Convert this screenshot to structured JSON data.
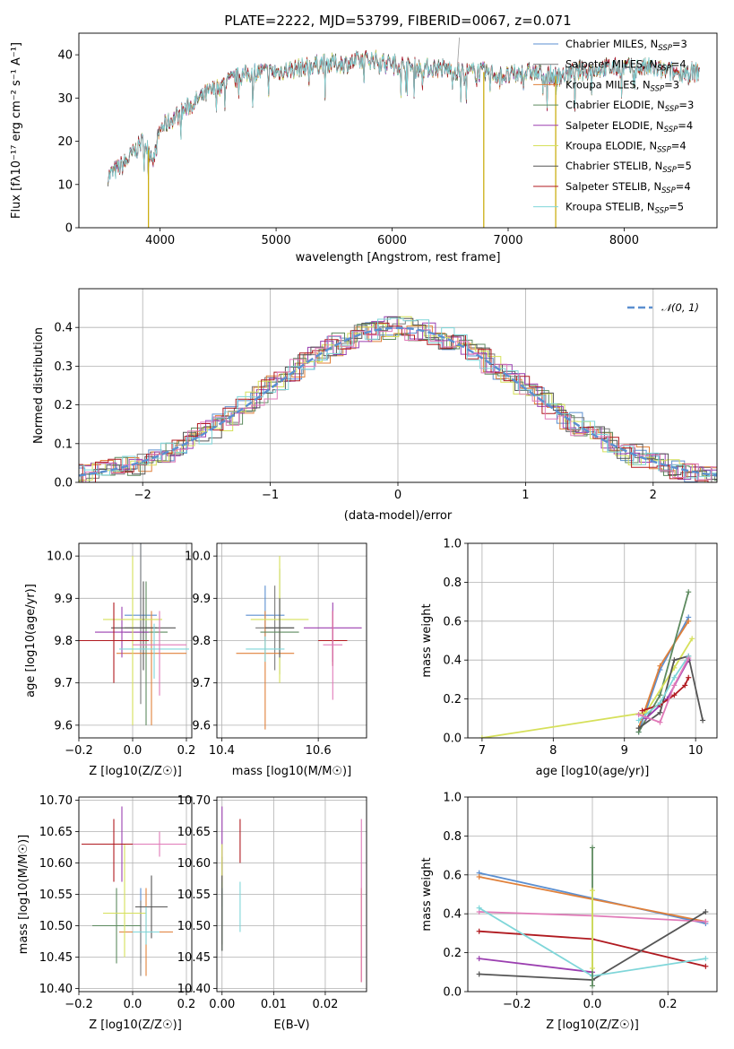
{
  "figure_title": "PLATE=2222, MJD=53799, FIBERID=0067, z=0.071",
  "series_colors": {
    "Chabrier MILES": "#5b8fd0",
    "Salpeter MILES": "#7a7a7a",
    "Kroupa MILES": "#e0803a",
    "Chabrier ELODIE": "#5d8a5f",
    "Salpeter ELODIE": "#9b3fb0",
    "Kroupa ELODIE": "#d6e05a",
    "Chabrier STELIB": "#555555",
    "Salpeter STELIB": "#b01a20",
    "Kroupa STELIB": "#7fd6d9",
    "Kroupa STELIB alt": "#e07ab8"
  },
  "chart_data": [
    {
      "id": "spectrum",
      "type": "line",
      "title": "PLATE=2222, MJD=53799, FIBERID=0067, z=0.071",
      "xlabel": "wavelength [Angstrom, rest frame]",
      "ylabel": "Flux [fλ10⁻¹⁷ erg cm⁻² s⁻¹ A⁻¹]",
      "xlim": [
        3300,
        8800
      ],
      "ylim": [
        0,
        45
      ],
      "xticks": [
        4000,
        5000,
        6000,
        7000,
        8000
      ],
      "yticks": [
        0,
        10,
        20,
        30,
        40
      ],
      "legend_position": "top-right",
      "legend": [
        {
          "label": "Chabrier MILES, N",
          "sub": "SSP",
          "suffix": "=3",
          "color": "#5b8fd0"
        },
        {
          "label": "Salpeter MILES, N",
          "sub": "SSP",
          "suffix": "=4",
          "color": "#7a7a7a"
        },
        {
          "label": "Kroupa MILES, N",
          "sub": "SSP",
          "suffix": "=3",
          "color": "#e0803a"
        },
        {
          "label": "Chabrier ELODIE, N",
          "sub": "SSP",
          "suffix": "=3",
          "color": "#5d8a5f"
        },
        {
          "label": "Salpeter ELODIE, N",
          "sub": "SSP",
          "suffix": "=4",
          "color": "#9b3fb0"
        },
        {
          "label": "Kroupa ELODIE, N",
          "sub": "SSP",
          "suffix": "=4",
          "color": "#d6e05a"
        },
        {
          "label": "Chabrier STELIB, N",
          "sub": "SSP",
          "suffix": "=5",
          "color": "#555555"
        },
        {
          "label": "Salpeter STELIB, N",
          "sub": "SSP",
          "suffix": "=4",
          "color": "#b01a20"
        },
        {
          "label": "Kroupa STELIB, N",
          "sub": "SSP",
          "suffix": "=5",
          "color": "#7fd6d9"
        }
      ],
      "continuum": [
        [
          3550,
          12
        ],
        [
          3700,
          15
        ],
        [
          3850,
          20
        ],
        [
          3950,
          16
        ],
        [
          4000,
          23
        ],
        [
          4200,
          27
        ],
        [
          4400,
          31
        ],
        [
          4600,
          34
        ],
        [
          4800,
          36
        ],
        [
          5000,
          36
        ],
        [
          5200,
          37
        ],
        [
          5400,
          38
        ],
        [
          5600,
          38
        ],
        [
          5800,
          39
        ],
        [
          6000,
          38
        ],
        [
          6200,
          37
        ],
        [
          6400,
          37
        ],
        [
          6600,
          36
        ],
        [
          6800,
          36
        ],
        [
          7000,
          35
        ],
        [
          7200,
          36
        ],
        [
          7400,
          35
        ],
        [
          7600,
          36
        ],
        [
          7800,
          37
        ],
        [
          8000,
          37
        ],
        [
          8200,
          37
        ],
        [
          8400,
          36
        ],
        [
          8650,
          36
        ]
      ],
      "dips": [
        [
          3900,
          0
        ],
        [
          6790,
          0
        ],
        [
          7410,
          0
        ]
      ],
      "spike": [
        6560,
        44
      ]
    },
    {
      "id": "residuals",
      "type": "line",
      "xlabel": "(data-model)/error",
      "ylabel": "Normed distribution",
      "xlim": [
        -2.5,
        2.5
      ],
      "ylim": [
        0,
        0.5
      ],
      "xticks": [
        -2,
        -1,
        0,
        1,
        2
      ],
      "yticks": [
        0.0,
        0.1,
        0.2,
        0.3,
        0.4
      ],
      "legend_position": "top-right",
      "reference_curve": {
        "label": "𝒩(0, 1)",
        "mean": 0,
        "sigma": 1,
        "color": "#5b8fd0"
      },
      "bin_width": 0.1
    },
    {
      "id": "age-vs-Z",
      "type": "scatter",
      "xlabel": "Z [log10(Z/Z☉)]",
      "ylabel": "age [log10(age/yr)]",
      "xlim": [
        -0.2,
        0.22
      ],
      "ylim": [
        9.57,
        10.03
      ],
      "xticks": [
        -0.2,
        0.0,
        0.2
      ],
      "yticks": [
        9.6,
        9.7,
        9.8,
        9.9,
        10.0
      ],
      "points": [
        {
          "x": 0.03,
          "y": 9.86,
          "xerr": 0.06,
          "yerr": [
            0.06,
            0.29
          ],
          "color": "#5b8fd0"
        },
        {
          "x": 0.03,
          "y": 9.83,
          "xerr": 0.06,
          "yerr": [
            0.18,
            0.23
          ],
          "color": "#7a7a7a"
        },
        {
          "x": 0.07,
          "y": 9.77,
          "xerr": 0.13,
          "yerr": [
            0.17,
            0.1
          ],
          "color": "#e0803a"
        },
        {
          "x": 0.05,
          "y": 9.82,
          "xerr": 0.08,
          "yerr": [
            0.22,
            0.12
          ],
          "color": "#5d8a5f"
        },
        {
          "x": -0.04,
          "y": 9.82,
          "xerr": 0.1,
          "yerr": [
            0.06,
            0.06
          ],
          "color": "#9b3fb0"
        },
        {
          "x": 0.0,
          "y": 9.85,
          "xerr": 0.11,
          "yerr": [
            0.25,
            0.15
          ],
          "color": "#d6e05a"
        },
        {
          "x": 0.04,
          "y": 9.83,
          "xerr": 0.12,
          "yerr": [
            0.1,
            0.11
          ],
          "color": "#555555"
        },
        {
          "x": -0.07,
          "y": 9.8,
          "xerr": 0.13,
          "yerr": [
            0.1,
            0.09
          ],
          "color": "#b01a20"
        },
        {
          "x": 0.08,
          "y": 9.78,
          "xerr": 0.13,
          "yerr": [
            0.07,
            0.06
          ],
          "color": "#7fd6d9"
        },
        {
          "x": 0.1,
          "y": 9.79,
          "xerr": 0.1,
          "yerr": [
            0.12,
            0.08
          ],
          "color": "#e07ab8"
        }
      ]
    },
    {
      "id": "age-vs-mass",
      "type": "scatter",
      "xlabel": "mass [log10(M/M☉)]",
      "ylabel": "",
      "xlim": [
        10.39,
        10.7
      ],
      "ylim": [
        9.57,
        10.03
      ],
      "xticks": [
        10.4,
        10.6
      ],
      "yticks": [
        9.6,
        9.7,
        9.8,
        9.9,
        10.0
      ],
      "points": [
        {
          "x": 10.49,
          "y": 9.86,
          "xerr": 0.04,
          "yerr": [
            0.06,
            0.07
          ],
          "color": "#5b8fd0"
        },
        {
          "x": 10.51,
          "y": 9.83,
          "xerr": 0.04,
          "yerr": [
            0.1,
            0.1
          ],
          "color": "#7a7a7a"
        },
        {
          "x": 10.49,
          "y": 9.77,
          "xerr": 0.06,
          "yerr": [
            0.18,
            0.1
          ],
          "color": "#e0803a"
        },
        {
          "x": 10.52,
          "y": 9.82,
          "xerr": 0.04,
          "yerr": [
            0.1,
            0.15
          ],
          "color": "#5d8a5f"
        },
        {
          "x": 10.63,
          "y": 9.83,
          "xerr": 0.06,
          "yerr": [
            0.08,
            0.06
          ],
          "color": "#9b3fb0"
        },
        {
          "x": 10.52,
          "y": 9.85,
          "xerr": 0.06,
          "yerr": [
            0.15,
            0.15
          ],
          "color": "#d6e05a"
        },
        {
          "x": 10.52,
          "y": 9.83,
          "xerr": 0.03,
          "yerr": [
            0.07,
            0.07
          ],
          "color": "#555555"
        },
        {
          "x": 10.63,
          "y": 9.8,
          "xerr": 0.03,
          "yerr": [
            0.06,
            0.07
          ],
          "color": "#b01a20"
        },
        {
          "x": 10.49,
          "y": 9.78,
          "xerr": 0.04,
          "yerr": [
            0.03,
            0.03
          ],
          "color": "#7fd6d9"
        },
        {
          "x": 10.63,
          "y": 9.79,
          "xerr": 0.02,
          "yerr": [
            0.13,
            0.08
          ],
          "color": "#e07ab8"
        }
      ]
    },
    {
      "id": "weight-vs-age",
      "type": "line",
      "xlabel": "age [log10(age/yr)]",
      "ylabel": "mass weight",
      "xlim": [
        6.8,
        10.3
      ],
      "ylim": [
        0,
        1.0
      ],
      "xticks": [
        7,
        8,
        9,
        10
      ],
      "yticks": [
        0.0,
        0.2,
        0.4,
        0.6,
        0.8,
        1.0
      ],
      "series": [
        {
          "color": "#5b8fd0",
          "x": [
            9.2,
            9.5,
            9.9
          ],
          "y": [
            0.03,
            0.35,
            0.62
          ]
        },
        {
          "color": "#e0803a",
          "x": [
            9.2,
            9.5,
            9.9
          ],
          "y": [
            0.05,
            0.37,
            0.6
          ]
        },
        {
          "color": "#5d8a5f",
          "x": [
            9.2,
            9.5,
            9.9
          ],
          "y": [
            0.03,
            0.22,
            0.75
          ]
        },
        {
          "color": "#9b3fb0",
          "x": [
            9.3,
            9.6,
            9.9
          ],
          "y": [
            0.1,
            0.2,
            0.4
          ]
        },
        {
          "color": "#d6e05a",
          "x": [
            7.0,
            9.3,
            9.7,
            9.95
          ],
          "y": [
            0.0,
            0.13,
            0.36,
            0.51
          ]
        },
        {
          "color": "#555555",
          "x": [
            9.2,
            9.5,
            9.7,
            9.9,
            10.1
          ],
          "y": [
            0.05,
            0.13,
            0.4,
            0.42,
            0.09
          ]
        },
        {
          "color": "#b01a20",
          "x": [
            9.25,
            9.5,
            9.7,
            9.85,
            9.9
          ],
          "y": [
            0.14,
            0.17,
            0.22,
            0.27,
            0.31
          ]
        },
        {
          "color": "#7fd6d9",
          "x": [
            9.2,
            9.5,
            9.7,
            9.9
          ],
          "y": [
            0.09,
            0.18,
            0.31,
            0.42
          ]
        },
        {
          "color": "#e07ab8",
          "x": [
            9.2,
            9.5,
            9.7,
            9.9
          ],
          "y": [
            0.12,
            0.08,
            0.27,
            0.41
          ]
        }
      ]
    },
    {
      "id": "mass-vs-Z",
      "type": "scatter",
      "xlabel": "Z [log10(Z/Z☉)]",
      "ylabel": "mass [log10(M/M☉)]",
      "xlim": [
        -0.2,
        0.22
      ],
      "ylim": [
        10.395,
        10.705
      ],
      "xticks": [
        -0.2,
        0.0,
        0.2
      ],
      "yticks": [
        10.4,
        10.45,
        10.5,
        10.55,
        10.6,
        10.65,
        10.7
      ],
      "points": [
        {
          "x": 0.03,
          "y": 10.49,
          "xerr": 0.06,
          "yerr": [
            0.05,
            0.07
          ],
          "color": "#5b8fd0"
        },
        {
          "x": 0.03,
          "y": 10.49,
          "xerr": 0.06,
          "yerr": [
            0.07,
            0.05
          ],
          "color": "#7a7a7a"
        },
        {
          "x": 0.05,
          "y": 10.49,
          "xerr": 0.1,
          "yerr": [
            0.07,
            0.07
          ],
          "color": "#e0803a"
        },
        {
          "x": -0.06,
          "y": 10.5,
          "xerr": 0.09,
          "yerr": [
            0.06,
            0.06
          ],
          "color": "#5d8a5f"
        },
        {
          "x": -0.04,
          "y": 10.63,
          "xerr": 0.07,
          "yerr": [
            0.06,
            0.06
          ],
          "color": "#9b3fb0"
        },
        {
          "x": -0.03,
          "y": 10.52,
          "xerr": 0.08,
          "yerr": [
            0.07,
            0.11
          ],
          "color": "#d6e05a"
        },
        {
          "x": 0.07,
          "y": 10.53,
          "xerr": 0.06,
          "yerr": [
            0.05,
            0.05
          ],
          "color": "#555555"
        },
        {
          "x": -0.07,
          "y": 10.63,
          "xerr": 0.12,
          "yerr": [
            0.06,
            0.04
          ],
          "color": "#b01a20"
        },
        {
          "x": 0.05,
          "y": 10.49,
          "xerr": 0.05,
          "yerr": [
            0.02,
            0.04
          ],
          "color": "#7fd6d9"
        },
        {
          "x": 0.1,
          "y": 10.63,
          "xerr": 0.1,
          "yerr": [
            0.02,
            0.02
          ],
          "color": "#e07ab8"
        }
      ]
    },
    {
      "id": "mass-vs-EBV",
      "type": "scatter",
      "xlabel": "E(B-V)",
      "ylabel": "",
      "xlim": [
        -0.001,
        0.028
      ],
      "ylim": [
        10.395,
        10.705
      ],
      "xticks": [
        0.0,
        0.01,
        0.02
      ],
      "yticks": [
        10.4,
        10.45,
        10.5,
        10.55,
        10.6,
        10.65,
        10.7
      ],
      "points": [
        {
          "x": 0.0,
          "y": 10.55,
          "yerr": [
            0.02,
            0.05
          ],
          "color": "#5b8fd0"
        },
        {
          "x": 0.0,
          "y": 10.51,
          "yerr": [
            0.04,
            0.06
          ],
          "color": "#7a7a7a"
        },
        {
          "x": 0.027,
          "y": 10.49,
          "yerr": [
            0.08,
            0.07
          ],
          "color": "#e0803a"
        },
        {
          "x": 0.0,
          "y": 10.54,
          "yerr": [
            0.08,
            0.07
          ],
          "color": "#5d8a5f"
        },
        {
          "x": 0.0,
          "y": 10.63,
          "yerr": [
            0.06,
            0.06
          ],
          "color": "#9b3fb0"
        },
        {
          "x": 0.0,
          "y": 10.6,
          "yerr": [
            0.04,
            0.03
          ],
          "color": "#d6e05a"
        },
        {
          "x": 0.0,
          "y": 10.53,
          "yerr": [
            0.07,
            0.05
          ],
          "color": "#555555"
        },
        {
          "x": 0.0035,
          "y": 10.63,
          "yerr": [
            0.03,
            0.04
          ],
          "color": "#b01a20"
        },
        {
          "x": 0.0035,
          "y": 10.53,
          "yerr": [
            0.04,
            0.04
          ],
          "color": "#7fd6d9"
        },
        {
          "x": 0.027,
          "y": 10.54,
          "yerr": [
            0.13,
            0.13
          ],
          "color": "#e07ab8"
        }
      ]
    },
    {
      "id": "weight-vs-Z",
      "type": "line",
      "xlabel": "Z [log10(Z/Z☉)]",
      "ylabel": "mass weight",
      "xlim": [
        -0.33,
        0.33
      ],
      "ylim": [
        0,
        1.0
      ],
      "xticks": [
        -0.2,
        0.0,
        0.2
      ],
      "yticks": [
        0.0,
        0.2,
        0.4,
        0.6,
        0.8,
        1.0
      ],
      "series": [
        {
          "color": "#5b8fd0",
          "x": [
            -0.3,
            0.3
          ],
          "y": [
            0.61,
            0.35
          ]
        },
        {
          "color": "#e0803a",
          "x": [
            -0.3,
            0.3
          ],
          "y": [
            0.59,
            0.36
          ]
        },
        {
          "color": "#e07ab8",
          "x": [
            -0.3,
            0.0,
            0.3
          ],
          "y": [
            0.41,
            0.39,
            0.36
          ]
        },
        {
          "color": "#b01a20",
          "x": [
            -0.3,
            0.0,
            0.3
          ],
          "y": [
            0.31,
            0.27,
            0.13
          ]
        },
        {
          "color": "#9b3fb0",
          "x": [
            -0.3,
            0.0
          ],
          "y": [
            0.17,
            0.1
          ]
        },
        {
          "color": "#555555",
          "x": [
            -0.3,
            0.0,
            0.3
          ],
          "y": [
            0.09,
            0.06,
            0.41
          ]
        },
        {
          "color": "#7fd6d9",
          "x": [
            -0.3,
            0.0,
            0.3
          ],
          "y": [
            0.43,
            0.08,
            0.17
          ]
        },
        {
          "color": "#5d8a5f",
          "x": [
            0.0,
            0.0
          ],
          "y": [
            0.74,
            0.03
          ]
        },
        {
          "color": "#d6e05a",
          "x": [
            0.0,
            0.0
          ],
          "y": [
            0.52,
            0.12
          ]
        }
      ]
    }
  ]
}
